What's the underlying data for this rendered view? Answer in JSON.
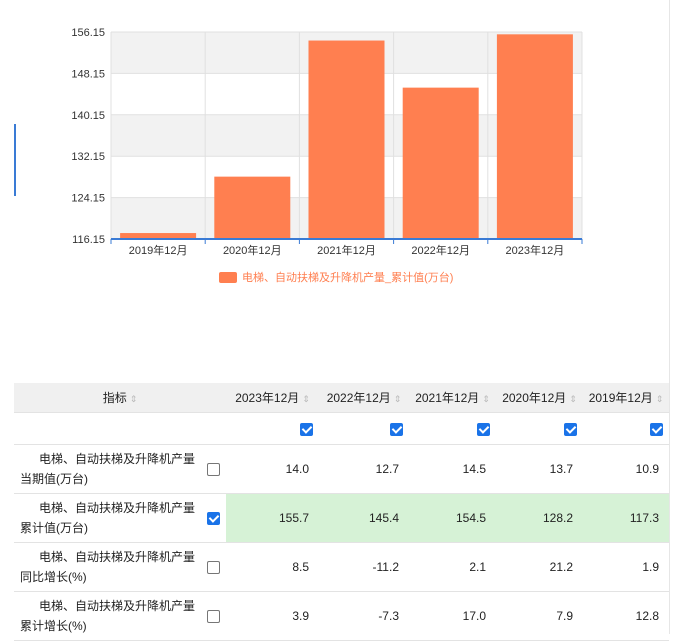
{
  "chart_data": {
    "type": "bar",
    "categories": [
      "2019年12月",
      "2020年12月",
      "2021年12月",
      "2022年12月",
      "2023年12月"
    ],
    "series": [
      {
        "name": "电梯、自动扶梯及升降机产量_累计值(万台)",
        "values": [
          117.3,
          128.2,
          154.5,
          145.4,
          155.7
        ]
      }
    ],
    "yticks": [
      "116.15",
      "124.15",
      "132.15",
      "140.15",
      "148.15",
      "156.15"
    ],
    "ylim": [
      116.15,
      156.15
    ],
    "grid": true,
    "legend_position": "bottom",
    "colors": {
      "bar": "#ff7f50",
      "axis": "#3a7bd5",
      "grid": "#e0e0e0",
      "band": "#f2f2f2"
    }
  },
  "table": {
    "header_indicator": "指标",
    "sort_icon": "⇕",
    "columns": [
      "2023年12月",
      "2022年12月",
      "2021年12月",
      "2020年12月",
      "2019年12月"
    ],
    "column_checked": [
      true,
      true,
      true,
      true,
      true
    ],
    "rows": [
      {
        "line1": "电梯、自动扶梯及升降机产量",
        "line2": "当期值(万台)",
        "checked": false,
        "values": [
          "14.0",
          "12.7",
          "14.5",
          "13.7",
          "10.9"
        ]
      },
      {
        "line1": "电梯、自动扶梯及升降机产量",
        "line2": "累计值(万台)",
        "checked": true,
        "values": [
          "155.7",
          "145.4",
          "154.5",
          "128.2",
          "117.3"
        ]
      },
      {
        "line1": "电梯、自动扶梯及升降机产量",
        "line2": "同比增长(%)",
        "checked": false,
        "values": [
          "8.5",
          "-11.2",
          "2.1",
          "21.2",
          "1.9"
        ]
      },
      {
        "line1": "电梯、自动扶梯及升降机产量",
        "line2": "累计增长(%)",
        "checked": false,
        "values": [
          "3.9",
          "-7.3",
          "17.0",
          "7.9",
          "12.8"
        ]
      }
    ]
  }
}
